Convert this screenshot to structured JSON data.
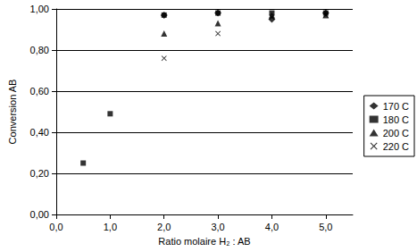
{
  "chart_data": {
    "type": "scatter",
    "x_label": "Ratio molaire H₂ : AB",
    "y_label": "Conversion AB",
    "xlim": [
      0,
      5.5
    ],
    "xticks": [
      {
        "value": 0,
        "label": "0,0"
      },
      {
        "value": 1,
        "label": "1,0"
      },
      {
        "value": 2,
        "label": "2,0"
      },
      {
        "value": 3,
        "label": "3,0"
      },
      {
        "value": 4,
        "label": "4,0"
      },
      {
        "value": 5,
        "label": "5,0"
      }
    ],
    "ylim": [
      0,
      1
    ],
    "yticks": [
      {
        "value": 0,
        "label": "0,00"
      },
      {
        "value": 0.2,
        "label": "0,20"
      },
      {
        "value": 0.4,
        "label": "0,40"
      },
      {
        "value": 0.6,
        "label": "0,60"
      },
      {
        "value": 0.8,
        "label": "0,80"
      },
      {
        "value": 1,
        "label": "1,00"
      }
    ],
    "grid": true,
    "legend": "right",
    "series": [
      {
        "name": "170 C",
        "color": "#000000",
        "marker": "diamond",
        "x": [
          2,
          3,
          4,
          5
        ],
        "values": [
          0.97,
          0.98,
          0.95,
          0.98
        ]
      },
      {
        "name": "180 C",
        "color": "#000000",
        "marker": "square",
        "x": [
          0.5,
          1,
          2,
          3,
          4,
          5
        ],
        "values": [
          0.25,
          0.49,
          0.97,
          0.98,
          0.98,
          0.98
        ]
      },
      {
        "name": "200 C",
        "color": "#000000",
        "marker": "triangle",
        "x": [
          2,
          3,
          4,
          5
        ],
        "values": [
          0.88,
          0.93,
          0.97,
          0.97
        ]
      },
      {
        "name": "220 C",
        "color": "#000000",
        "marker": "x",
        "x": [
          2,
          3,
          4,
          5
        ],
        "values": [
          0.76,
          0.88,
          0.96,
          0.97
        ]
      }
    ]
  }
}
